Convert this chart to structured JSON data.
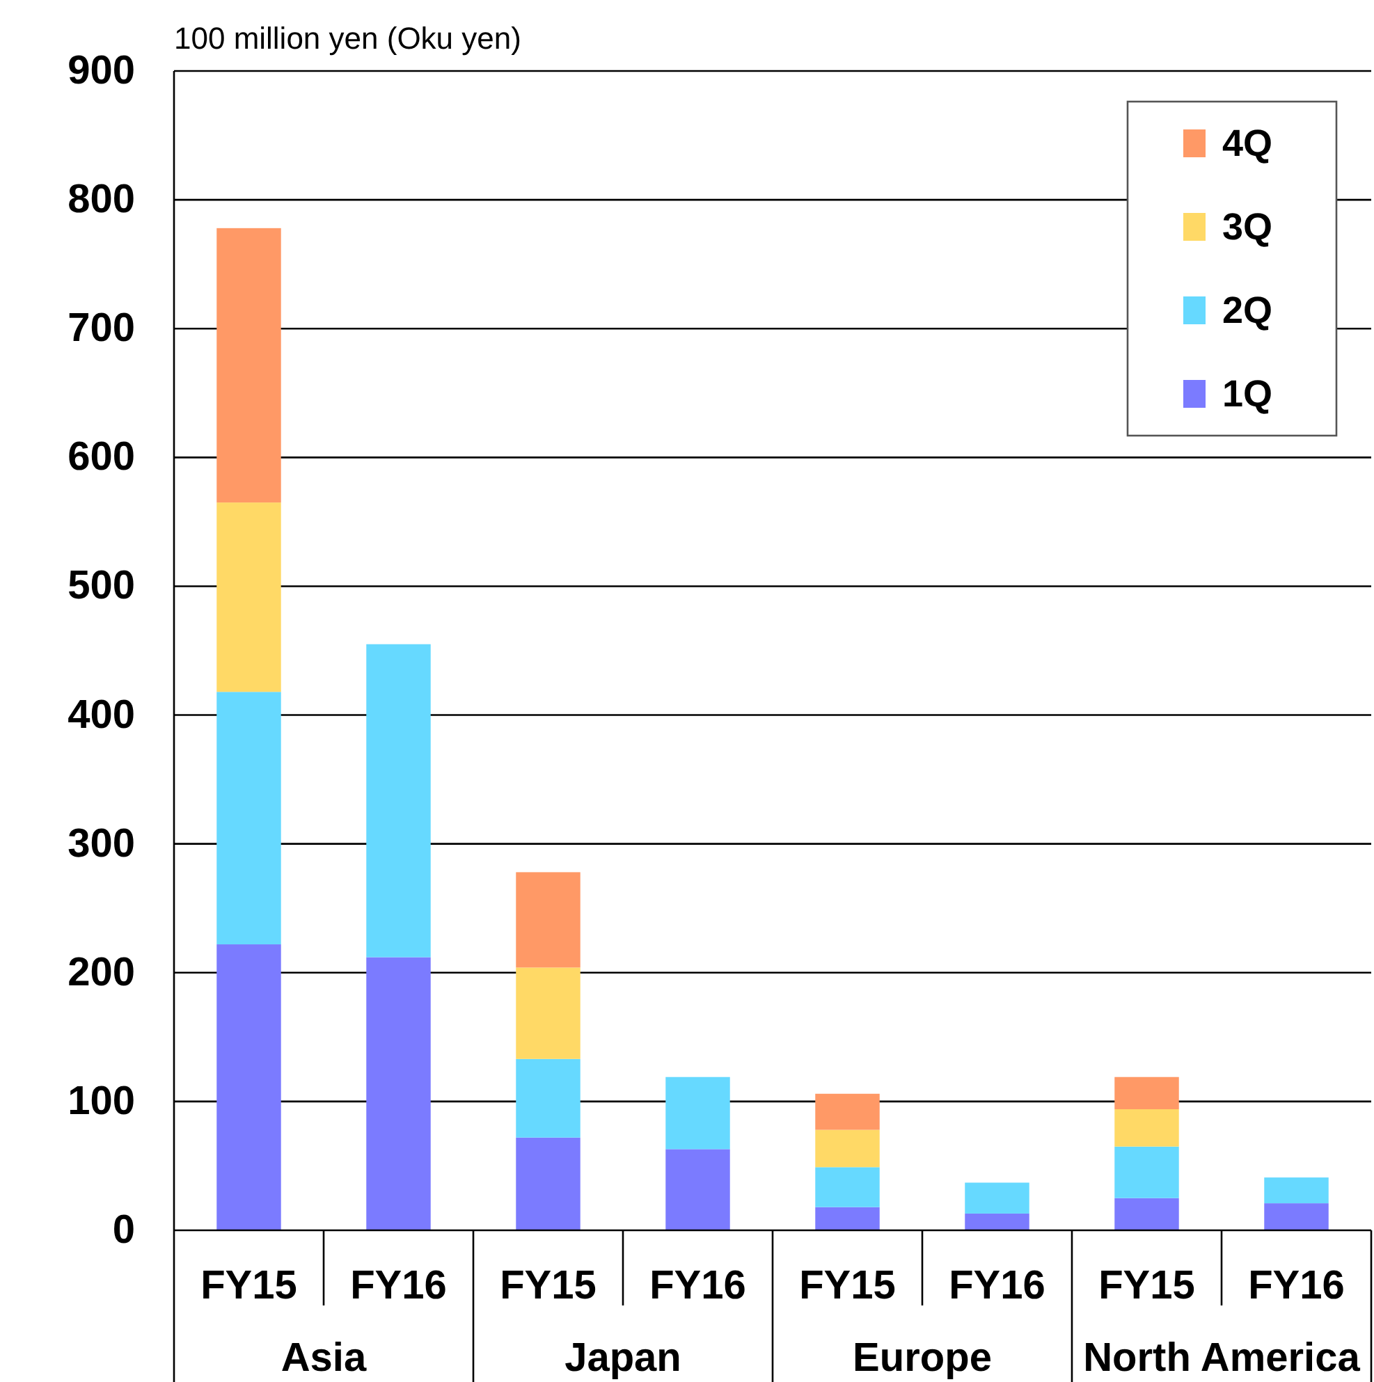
{
  "chart_data": {
    "type": "bar",
    "stacked": true,
    "ylabel": "100 million yen (Oku yen)",
    "categories": [
      "FY15",
      "FY16",
      "FY15",
      "FY16",
      "FY15",
      "FY16",
      "FY15",
      "FY16"
    ],
    "annotations": [
      "Asia",
      "Japan",
      "Europe",
      "North America"
    ],
    "series": [
      {
        "name": "1Q",
        "color": "#7b7bff",
        "values": [
          222,
          212,
          72,
          63,
          18,
          13,
          25,
          21
        ]
      },
      {
        "name": "2Q",
        "color": "#66d9ff",
        "values": [
          196,
          243,
          61,
          56,
          31,
          24,
          40,
          20
        ]
      },
      {
        "name": "3Q",
        "color": "#ffd966",
        "values": [
          147,
          null,
          71,
          null,
          29,
          null,
          29,
          null
        ]
      },
      {
        "name": "4Q",
        "color": "#ff9966",
        "values": [
          213,
          null,
          74,
          null,
          28,
          null,
          25,
          null
        ]
      }
    ],
    "ylim": [
      0,
      900
    ],
    "yticks": [
      0,
      100,
      200,
      300,
      400,
      500,
      600,
      700,
      800,
      900
    ],
    "grid": "y",
    "legend": "top right"
  }
}
